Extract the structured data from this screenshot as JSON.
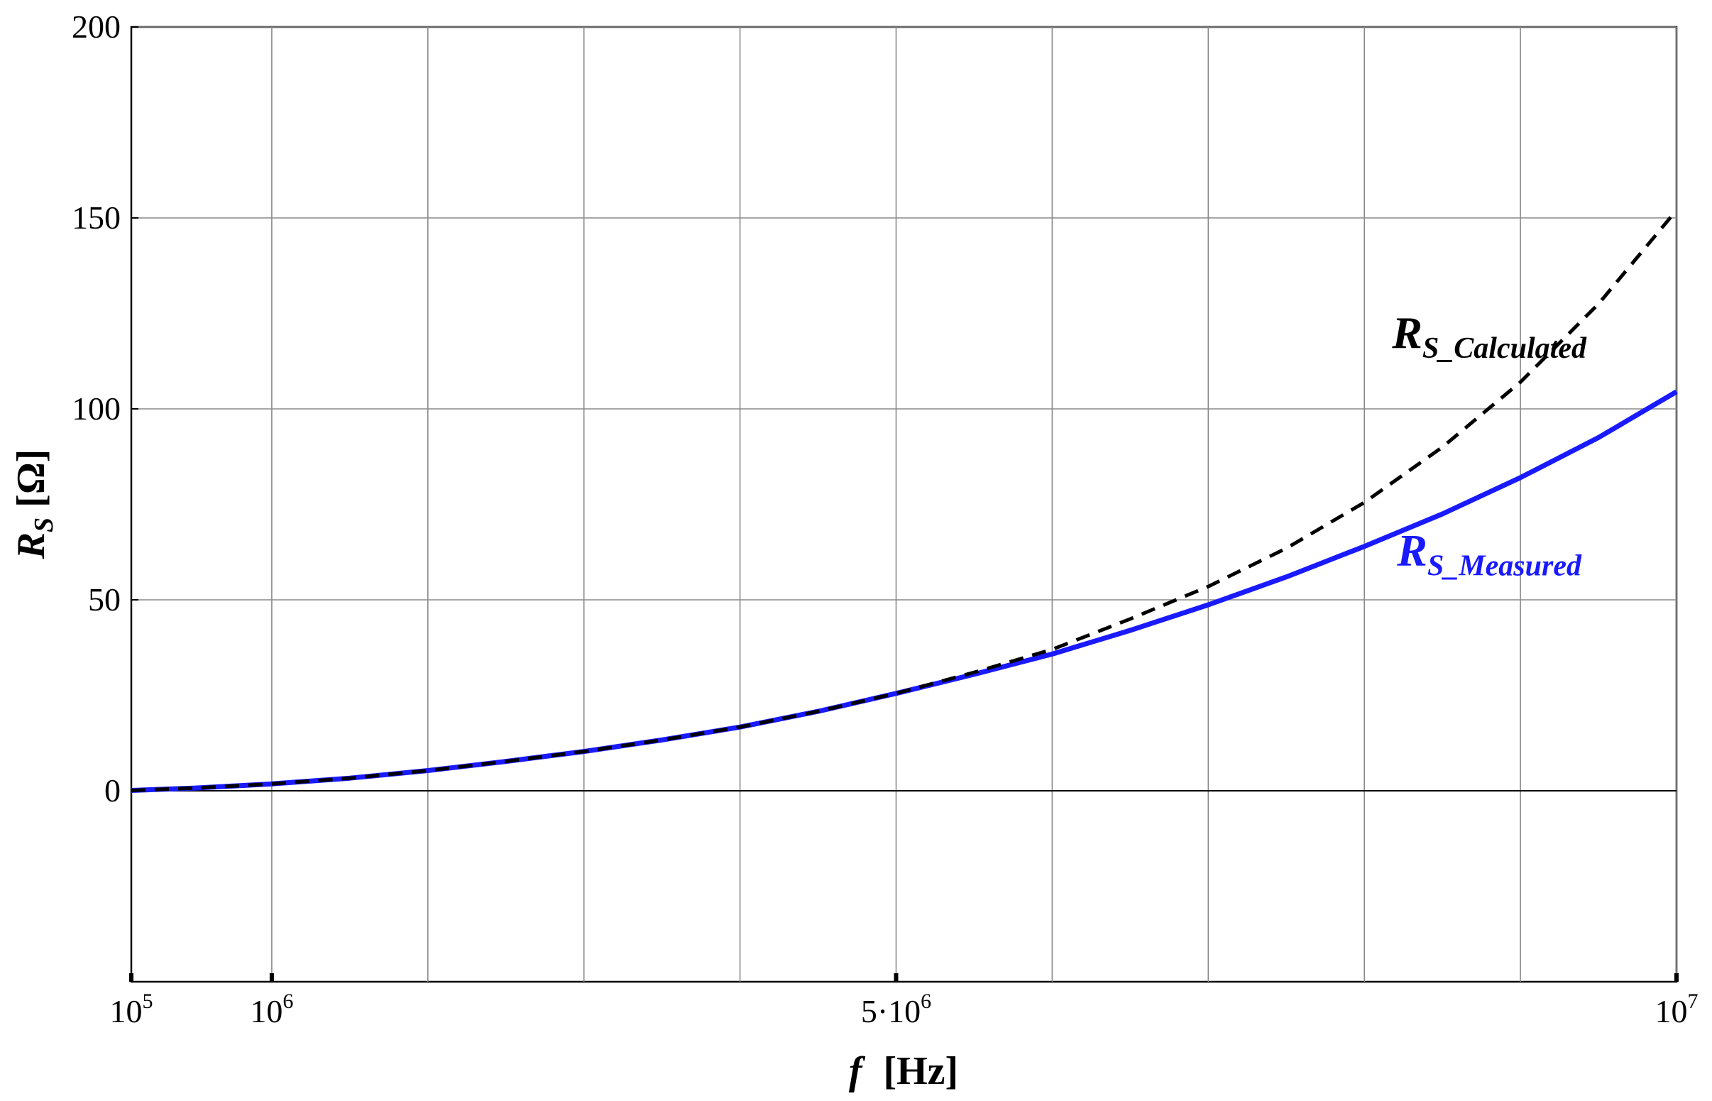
{
  "chart_data": {
    "type": "line",
    "xlabel": {
      "var": "f",
      "unit": "[Hz]"
    },
    "ylabel": {
      "var": "R",
      "sub": "S",
      "unit": "[Ω]"
    },
    "xlim": [
      100000,
      10000000
    ],
    "ylim": [
      -50,
      200
    ],
    "grid": true,
    "x_ticks": [
      {
        "value": 100000,
        "base": "10",
        "exp": "5"
      },
      {
        "value": 1000000,
        "base": "10",
        "exp": "6"
      },
      {
        "value": 5000000,
        "base": "5·10",
        "exp": "6"
      },
      {
        "value": 10000000,
        "base": "10",
        "exp": "7"
      }
    ],
    "x_grid": [
      1000000,
      2000000,
      3000000,
      4000000,
      5000000,
      6000000,
      7000000,
      8000000,
      9000000,
      10000000
    ],
    "y_ticks": [
      0,
      50,
      100,
      150,
      200
    ],
    "series": [
      {
        "name": "R",
        "sub": "S_Measured",
        "color": "#1a1aff",
        "style": "solid",
        "x": [
          100000,
          500000,
          1000000,
          1500000,
          2000000,
          2500000,
          3000000,
          3500000,
          4000000,
          4500000,
          5000000,
          5500000,
          6000000,
          6500000,
          7000000,
          7500000,
          8000000,
          8500000,
          9000000,
          9500000,
          10000000
        ],
        "y": [
          0.1,
          0.7,
          1.8,
          3.3,
          5.3,
          7.7,
          10.3,
          13.3,
          16.7,
          20.8,
          25.5,
          30.5,
          35.8,
          42.0,
          48.7,
          56.0,
          64.0,
          72.5,
          82.0,
          92.5,
          104.5
        ]
      },
      {
        "name": "R",
        "sub": "S_Calculated",
        "color": "#000000",
        "style": "dashed",
        "x": [
          100000,
          500000,
          1000000,
          1500000,
          2000000,
          2500000,
          3000000,
          3500000,
          4000000,
          4500000,
          5000000,
          5500000,
          6000000,
          6500000,
          7000000,
          7500000,
          8000000,
          8500000,
          9000000,
          9500000,
          10000000
        ],
        "y": [
          0.1,
          0.7,
          1.8,
          3.3,
          5.3,
          7.7,
          10.3,
          13.3,
          16.7,
          20.8,
          25.5,
          31.0,
          37.0,
          45.0,
          53.5,
          63.5,
          75.5,
          90.0,
          107.0,
          127.5,
          152.0
        ]
      }
    ],
    "annotations": [
      {
        "series": 1,
        "x": 8800000,
        "y": 116
      },
      {
        "series": 0,
        "x": 8800000,
        "y": 59
      }
    ]
  }
}
